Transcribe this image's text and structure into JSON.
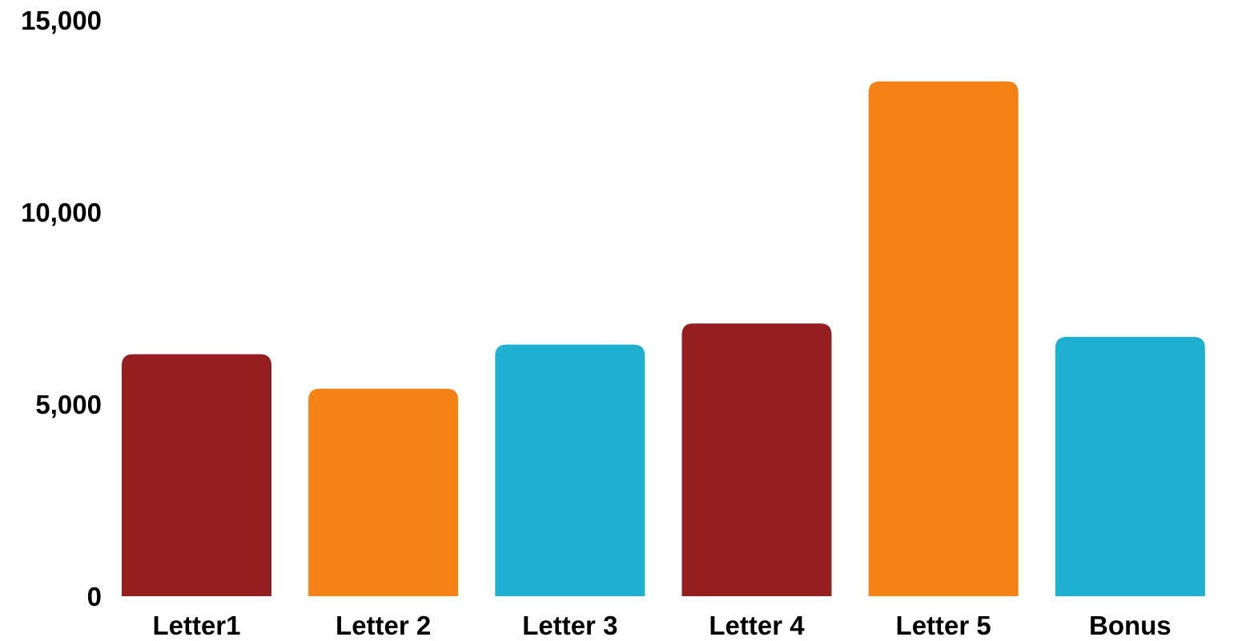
{
  "chart_data": {
    "type": "bar",
    "title": "",
    "xlabel": "",
    "ylabel": "",
    "categories": [
      "Letter1",
      "Letter 2",
      "Letter 3",
      "Letter 4",
      "Letter 5",
      "Bonus"
    ],
    "values": [
      6300,
      5400,
      6550,
      7100,
      13400,
      6750
    ],
    "bar_colors": [
      "#941e20",
      "#f58216",
      "#1eafd1",
      "#941e20",
      "#f58216",
      "#1eafd1"
    ],
    "ylim": [
      0,
      15000
    ],
    "yticks": [
      0,
      5000,
      10000,
      15000
    ],
    "ytick_labels": [
      "0",
      "5,000",
      "10,000",
      "15,000"
    ],
    "grid": false,
    "legend": "none"
  }
}
